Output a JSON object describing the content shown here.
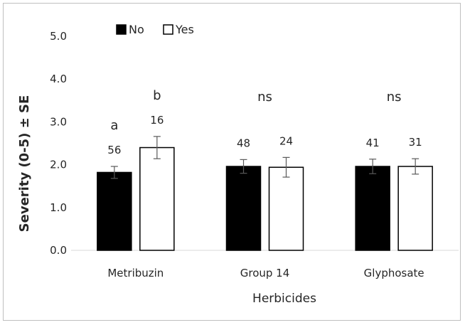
{
  "chart_data": {
    "type": "bar",
    "categories": [
      "Metribuzin",
      "Group 14",
      "Glyphosate"
    ],
    "series": [
      {
        "name": "No",
        "color": "#000000",
        "values": [
          1.82,
          1.96,
          1.96
        ],
        "errors": [
          0.14,
          0.16,
          0.17
        ],
        "counts": [
          "56",
          "48",
          "41"
        ]
      },
      {
        "name": "Yes",
        "color": "#ffffff",
        "values": [
          2.4,
          1.94,
          1.96
        ],
        "errors": [
          0.26,
          0.23,
          0.18
        ],
        "counts": [
          "16",
          "24",
          "31"
        ]
      }
    ],
    "significance": [
      {
        "No": "a",
        "Yes": "b"
      },
      {
        "label": "ns"
      },
      {
        "label": "ns"
      }
    ],
    "title": "",
    "xlabel": "Herbicides",
    "ylabel": "Severity (0-5) ± SE",
    "ylim": [
      0,
      5
    ],
    "yticks": [
      "0.0",
      "1.0",
      "2.0",
      "3.0",
      "4.0",
      "5.0"
    ],
    "grid": false,
    "legend_position": "top-left"
  }
}
